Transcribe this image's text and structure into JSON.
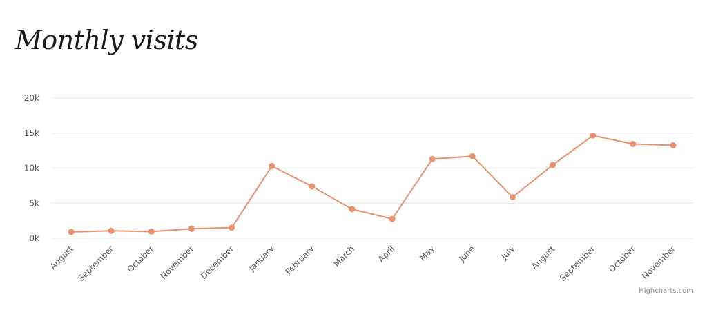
{
  "chart_data": {
    "type": "line",
    "title": "Monthly visits",
    "categories": [
      "August",
      "September",
      "October",
      "November",
      "December",
      "January",
      "February",
      "March",
      "April",
      "May",
      "June",
      "July",
      "August",
      "September",
      "October",
      "November"
    ],
    "series": [
      {
        "values": [
          900,
          1050,
          950,
          1350,
          1500,
          10300,
          7400,
          4150,
          2750,
          11300,
          11700,
          5850,
          10450,
          14650,
          13450,
          13250
        ],
        "color": "#e8916e"
      }
    ],
    "ylim": [
      0,
      20000
    ],
    "yticks": [
      0,
      5000,
      10000,
      15000,
      20000
    ],
    "ytick_labels": [
      "0k",
      "5k",
      "10k",
      "15k",
      "20k"
    ],
    "xlabel": "",
    "ylabel": "",
    "grid": true,
    "legend": "none",
    "gridline_color": "#e6e6e6"
  },
  "credits": "Highcharts.com"
}
